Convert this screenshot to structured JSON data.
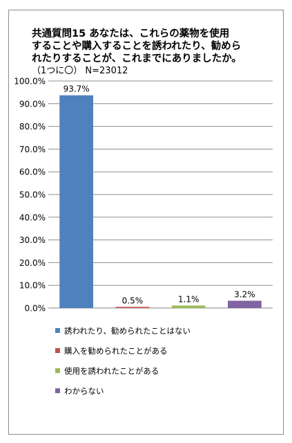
{
  "title": {
    "lines": [
      "共通質問15 あなたは、これらの薬物を使用",
      "することや購入することを誘われたり、勧めら",
      "れたりすることが、これまでにありましたか。"
    ],
    "subtitle": "（1つに〇） N=23012"
  },
  "chart_data": {
    "type": "bar",
    "title": "共通質問15 あなたは、これらの薬物を使用することや購入することを誘われたり、勧められたりすることが、これまでにありましたか。（1つに〇） N=23012",
    "categories": [
      "誘われたり、勧められたことはない",
      "購入を勧められたことがある",
      "使用を誘われたことがある",
      "わからない"
    ],
    "values": [
      93.7,
      0.5,
      1.1,
      3.2
    ],
    "value_labels": [
      "93.7%",
      "0.5%",
      "1.1%",
      "3.2%"
    ],
    "colors": [
      "#4f81bd",
      "#c0504d",
      "#9bbb59",
      "#8064a2"
    ],
    "ylim": [
      0,
      100
    ],
    "yticks": [
      0,
      10,
      20,
      30,
      40,
      50,
      60,
      70,
      80,
      90,
      100
    ],
    "ytick_labels": [
      "0.0%",
      "10.0%",
      "20.0%",
      "30.0%",
      "40.0%",
      "50.0%",
      "60.0%",
      "70.0%",
      "80.0%",
      "90.0%",
      "100.0%"
    ],
    "grid": true,
    "legend_position": "bottom",
    "xlabel": "",
    "ylabel": ""
  }
}
